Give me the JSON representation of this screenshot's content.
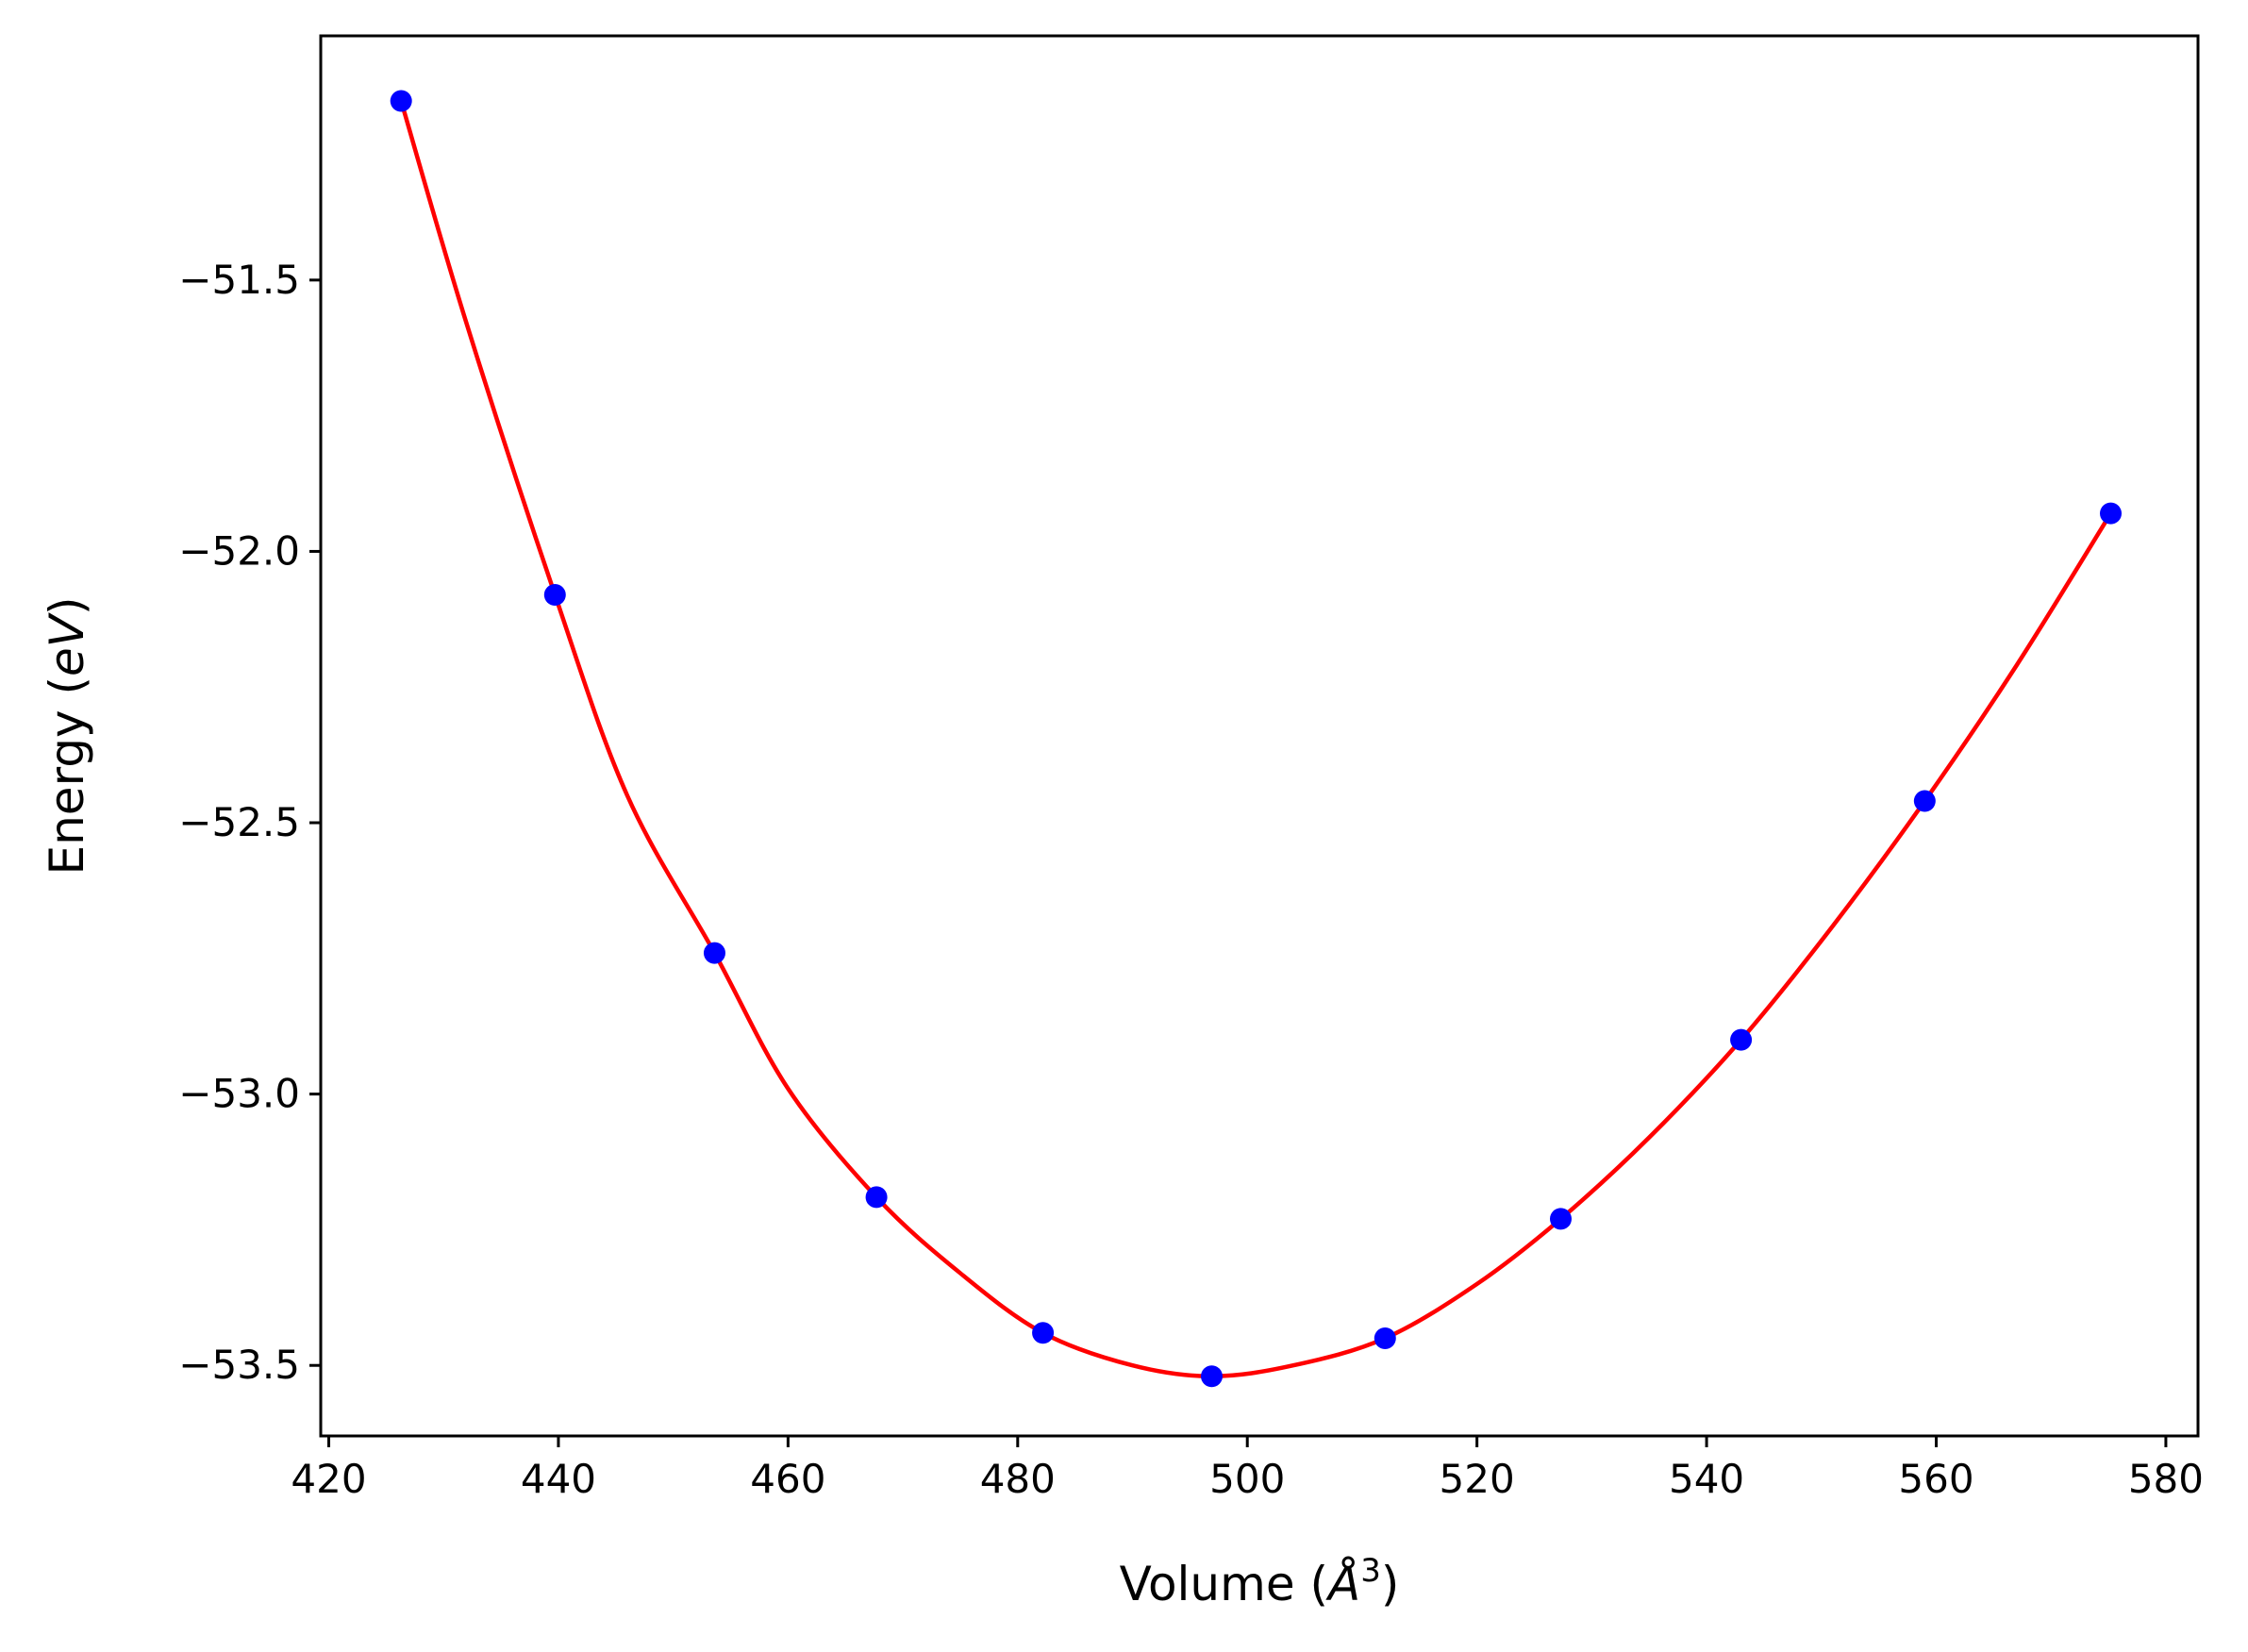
{
  "chart_data": {
    "type": "scatter",
    "title": "",
    "xlabel": {
      "prefix": "Volume (",
      "unit_symbol": "Å",
      "exponent": "3",
      "suffix": ")"
    },
    "ylabel": {
      "prefix": "Energy (",
      "unit": "eV",
      "suffix": ")"
    },
    "xlim": [
      419.3,
      582.8
    ],
    "ylim": [
      -53.63,
      -51.05
    ],
    "x_ticks": [
      420,
      440,
      460,
      480,
      500,
      520,
      540,
      560,
      580
    ],
    "x_tick_labels": [
      "420",
      "440",
      "460",
      "480",
      "500",
      "520",
      "540",
      "560",
      "580"
    ],
    "y_ticks": [
      -51.5,
      -52.0,
      -52.5,
      -53.0,
      -53.5
    ],
    "y_tick_labels": [
      "−51.5",
      "−52.0",
      "−52.5",
      "−53.0",
      "−53.5"
    ],
    "grid": false,
    "legend": false,
    "series": [
      {
        "kind": "points",
        "color": "#0000ff",
        "x": [
          426.3,
          439.7,
          453.6,
          467.7,
          482.2,
          496.9,
          512.0,
          527.3,
          543.0,
          559.0,
          575.2
        ],
        "y": [
          -51.17,
          -52.08,
          -52.74,
          -53.19,
          -53.44,
          -53.52,
          -53.45,
          -53.23,
          -52.9,
          -52.46,
          -51.93
        ]
      },
      {
        "kind": "fit-curve",
        "color": "#ff0000",
        "x": [
          426.3,
          432.0,
          439.7,
          446.0,
          453.6,
          460.0,
          467.7,
          475.0,
          482.2,
          490.0,
          496.9,
          504.0,
          512.0,
          520.0,
          527.3,
          535.0,
          543.0,
          551.0,
          559.0,
          567.0,
          575.2
        ],
        "y": [
          -51.17,
          -51.58,
          -52.08,
          -52.45,
          -52.74,
          -52.99,
          -53.19,
          -53.33,
          -53.44,
          -53.5,
          -53.52,
          -53.5,
          -53.45,
          -53.35,
          -53.23,
          -53.08,
          -52.9,
          -52.69,
          -52.46,
          -52.21,
          -51.93
        ]
      }
    ]
  }
}
